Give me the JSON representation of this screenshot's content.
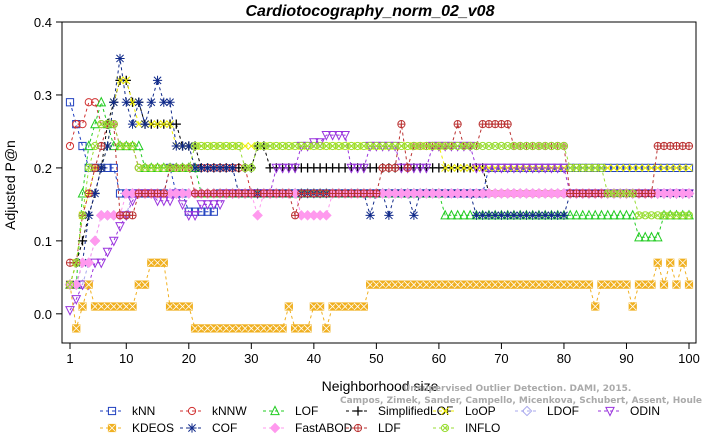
{
  "chart_data": {
    "type": "line",
    "title": "Cardiotocography_norm_02_v08",
    "xlabel": "Neighborhood size",
    "ylabel": "Adjusted P@n",
    "xlim": [
      1,
      100
    ],
    "ylim": [
      -0.04,
      0.4
    ],
    "xticks": [
      "1",
      "10",
      "20",
      "30",
      "40",
      "50",
      "60",
      "70",
      "80",
      "90",
      "100"
    ],
    "yticks": [
      "0.0",
      "0.1",
      "0.2",
      "0.3",
      "0.4"
    ],
    "grid": false,
    "legend_position": "bottom",
    "watermark": [
      "Unsupervised Outlier Detection. DAMI, 2015.",
      "Campos, Zimek, Sander, Campello, Micenkova, Schubert, Assent, Houle"
    ],
    "series": [
      {
        "name": "kNN",
        "color": "#1f3fbf",
        "marker": "square",
        "segments": [
          [
            1,
            0.29
          ],
          [
            2,
            0.26
          ],
          [
            3,
            0.23
          ],
          [
            4,
            0.2
          ],
          [
            6,
            0.2
          ],
          [
            8,
            0.2
          ],
          [
            9,
            0.165
          ],
          [
            16,
            0.165
          ],
          [
            17,
            0.2
          ],
          [
            18,
            0.165
          ],
          [
            19,
            0.165
          ],
          [
            20,
            0.14
          ],
          [
            24,
            0.14
          ],
          [
            25,
            0.165
          ],
          [
            67,
            0.165
          ],
          [
            68,
            0.2
          ],
          [
            100,
            0.2
          ]
        ]
      },
      {
        "name": "kNNW",
        "color": "#d03030",
        "marker": "circle",
        "segments": [
          [
            1,
            0.23
          ],
          [
            2,
            0.26
          ],
          [
            4,
            0.29
          ],
          [
            6,
            0.26
          ],
          [
            9,
            0.23
          ],
          [
            11,
            0.23
          ],
          [
            12,
            0.2
          ],
          [
            29,
            0.2
          ],
          [
            30,
            0.165
          ],
          [
            100,
            0.165
          ]
        ]
      },
      {
        "name": "LOF",
        "color": "#22cc22",
        "marker": "triangle-up",
        "segments": [
          [
            1,
            0.04
          ],
          [
            2,
            0.04
          ],
          [
            3,
            0.165
          ],
          [
            4,
            0.23
          ],
          [
            5,
            0.26
          ],
          [
            6,
            0.29
          ],
          [
            7,
            0.26
          ],
          [
            8,
            0.23
          ],
          [
            12,
            0.23
          ],
          [
            13,
            0.2
          ],
          [
            21,
            0.2
          ],
          [
            22,
            0.165
          ],
          [
            60,
            0.165
          ],
          [
            61,
            0.135
          ],
          [
            91,
            0.135
          ],
          [
            92,
            0.105
          ],
          [
            95,
            0.105
          ],
          [
            96,
            0.135
          ],
          [
            100,
            0.135
          ]
        ]
      },
      {
        "name": "SimplifiedLOF",
        "color": "#000000",
        "marker": "plus",
        "segments": [
          [
            1,
            0.04
          ],
          [
            2,
            0.07
          ],
          [
            3,
            0.1
          ],
          [
            4,
            0.135
          ],
          [
            5,
            0.165
          ],
          [
            6,
            0.2
          ],
          [
            7,
            0.26
          ],
          [
            8,
            0.29
          ],
          [
            9,
            0.32
          ],
          [
            10,
            0.32
          ],
          [
            11,
            0.29
          ],
          [
            12,
            0.29
          ],
          [
            13,
            0.26
          ],
          [
            18,
            0.26
          ],
          [
            19,
            0.23
          ],
          [
            21,
            0.23
          ],
          [
            22,
            0.2
          ],
          [
            30,
            0.2
          ],
          [
            31,
            0.23
          ],
          [
            32,
            0.23
          ],
          [
            33,
            0.2
          ],
          [
            67,
            0.2
          ],
          [
            68,
            0.165
          ],
          [
            100,
            0.165
          ]
        ]
      },
      {
        "name": "LoOP",
        "color": "#eeee00",
        "marker": "x",
        "segments": [
          [
            1,
            0.04
          ],
          [
            2,
            0.07
          ],
          [
            3,
            0.135
          ],
          [
            4,
            0.165
          ],
          [
            5,
            0.2
          ],
          [
            7,
            0.23
          ],
          [
            8,
            0.29
          ],
          [
            9,
            0.32
          ],
          [
            10,
            0.32
          ],
          [
            11,
            0.29
          ],
          [
            12,
            0.26
          ],
          [
            17,
            0.26
          ],
          [
            18,
            0.23
          ],
          [
            60,
            0.23
          ],
          [
            61,
            0.2
          ],
          [
            100,
            0.2
          ]
        ]
      },
      {
        "name": "LDOF",
        "color": "#aaaaee",
        "marker": "diamond",
        "segments": [
          [
            1,
            0.04
          ],
          [
            4,
            0.07
          ],
          [
            5,
            0.1
          ],
          [
            6,
            0.135
          ],
          [
            10,
            0.135
          ],
          [
            11,
            0.165
          ],
          [
            100,
            0.165
          ]
        ]
      },
      {
        "name": "ODIN",
        "color": "#9933dd",
        "marker": "triangle-down",
        "segments": [
          [
            1,
            0.005
          ],
          [
            2,
            0.02
          ],
          [
            3,
            0.04
          ],
          [
            5,
            0.07
          ],
          [
            7,
            0.085
          ],
          [
            8,
            0.1
          ],
          [
            9,
            0.12
          ],
          [
            10,
            0.135
          ],
          [
            11,
            0.155
          ],
          [
            12,
            0.165
          ],
          [
            14,
            0.165
          ],
          [
            15,
            0.155
          ],
          [
            17,
            0.155
          ],
          [
            18,
            0.165
          ],
          [
            19,
            0.15
          ],
          [
            20,
            0.135
          ],
          [
            22,
            0.15
          ],
          [
            25,
            0.15
          ],
          [
            26,
            0.165
          ],
          [
            30,
            0.165
          ],
          [
            34,
            0.2
          ],
          [
            36,
            0.2
          ],
          [
            38,
            0.23
          ],
          [
            40,
            0.235
          ],
          [
            42,
            0.245
          ],
          [
            44,
            0.245
          ],
          [
            46,
            0.2
          ],
          [
            48,
            0.2
          ],
          [
            49,
            0.23
          ],
          [
            52,
            0.23
          ],
          [
            54,
            0.2
          ],
          [
            58,
            0.2
          ],
          [
            59,
            0.23
          ],
          [
            65,
            0.23
          ],
          [
            66,
            0.2
          ],
          [
            80,
            0.2
          ],
          [
            81,
            0.165
          ],
          [
            100,
            0.165
          ]
        ]
      },
      {
        "name": "KDEOS",
        "color": "#f0b020",
        "marker": "square-x",
        "segments": [
          [
            1,
            0.04
          ],
          [
            2,
            -0.02
          ],
          [
            3,
            0.01
          ],
          [
            4,
            0.04
          ],
          [
            5,
            0.01
          ],
          [
            11,
            0.01
          ],
          [
            12,
            0.04
          ],
          [
            13,
            0.04
          ],
          [
            14,
            0.07
          ],
          [
            16,
            0.07
          ],
          [
            17,
            0.01
          ],
          [
            20,
            0.01
          ],
          [
            21,
            -0.02
          ],
          [
            35,
            -0.02
          ],
          [
            36,
            0.01
          ],
          [
            37,
            -0.02
          ],
          [
            39,
            -0.02
          ],
          [
            40,
            0.01
          ],
          [
            41,
            0.01
          ],
          [
            42,
            -0.02
          ],
          [
            43,
            0.01
          ],
          [
            48,
            0.01
          ],
          [
            49,
            0.04
          ],
          [
            84,
            0.04
          ],
          [
            85,
            0.01
          ],
          [
            86,
            0.04
          ],
          [
            90,
            0.04
          ],
          [
            91,
            0.01
          ],
          [
            92,
            0.04
          ],
          [
            94,
            0.04
          ],
          [
            95,
            0.07
          ],
          [
            96,
            0.04
          ],
          [
            97,
            0.07
          ],
          [
            98,
            0.04
          ],
          [
            99,
            0.07
          ],
          [
            100,
            0.04
          ]
        ]
      },
      {
        "name": "COF",
        "color": "#102a8a",
        "marker": "asterisk",
        "segments": [
          [
            1,
            0.04
          ],
          [
            2,
            0.04
          ],
          [
            3,
            0.07
          ],
          [
            4,
            0.135
          ],
          [
            5,
            0.165
          ],
          [
            6,
            0.2
          ],
          [
            7,
            0.23
          ],
          [
            8,
            0.29
          ],
          [
            9,
            0.35
          ],
          [
            10,
            0.29
          ],
          [
            11,
            0.26
          ],
          [
            12,
            0.29
          ],
          [
            13,
            0.26
          ],
          [
            14,
            0.29
          ],
          [
            15,
            0.32
          ],
          [
            16,
            0.29
          ],
          [
            17,
            0.29
          ],
          [
            18,
            0.23
          ],
          [
            20,
            0.23
          ],
          [
            21,
            0.2
          ],
          [
            27,
            0.2
          ],
          [
            28,
            0.165
          ],
          [
            48,
            0.165
          ],
          [
            49,
            0.135
          ],
          [
            50,
            0.165
          ],
          [
            52,
            0.135
          ],
          [
            53,
            0.165
          ],
          [
            56,
            0.135
          ],
          [
            57,
            0.165
          ],
          [
            65,
            0.165
          ],
          [
            66,
            0.135
          ],
          [
            80,
            0.135
          ],
          [
            81,
            0.165
          ],
          [
            100,
            0.165
          ]
        ]
      },
      {
        "name": "FastABOD",
        "color": "#ff99ee",
        "marker": "diamond-filled",
        "segments": [
          [
            1,
            0.04
          ],
          [
            3,
            0.07
          ],
          [
            5,
            0.1
          ],
          [
            6,
            0.135
          ],
          [
            9,
            0.135
          ],
          [
            10,
            0.165
          ],
          [
            30,
            0.165
          ],
          [
            31,
            0.135
          ],
          [
            32,
            0.165
          ],
          [
            37,
            0.165
          ],
          [
            38,
            0.135
          ],
          [
            42,
            0.135
          ],
          [
            43,
            0.165
          ],
          [
            100,
            0.165
          ]
        ]
      },
      {
        "name": "LDF",
        "color": "#bb3333",
        "marker": "circle-plus",
        "segments": [
          [
            1,
            0.07
          ],
          [
            2,
            0.07
          ],
          [
            3,
            0.135
          ],
          [
            4,
            0.165
          ],
          [
            5,
            0.2
          ],
          [
            6,
            0.23
          ],
          [
            7,
            0.26
          ],
          [
            8,
            0.26
          ],
          [
            9,
            0.135
          ],
          [
            10,
            0.135
          ],
          [
            11,
            0.135
          ],
          [
            12,
            0.165
          ],
          [
            16,
            0.165
          ],
          [
            17,
            0.2
          ],
          [
            20,
            0.2
          ],
          [
            21,
            0.165
          ],
          [
            36,
            0.165
          ],
          [
            37,
            0.135
          ],
          [
            38,
            0.165
          ],
          [
            50,
            0.165
          ],
          [
            51,
            0.2
          ],
          [
            53,
            0.2
          ],
          [
            54,
            0.26
          ],
          [
            55,
            0.2
          ],
          [
            56,
            0.23
          ],
          [
            62,
            0.23
          ],
          [
            63,
            0.26
          ],
          [
            64,
            0.23
          ],
          [
            66,
            0.23
          ],
          [
            67,
            0.26
          ],
          [
            71,
            0.26
          ],
          [
            72,
            0.23
          ],
          [
            80,
            0.23
          ],
          [
            81,
            0.165
          ],
          [
            94,
            0.165
          ],
          [
            95,
            0.23
          ],
          [
            100,
            0.23
          ]
        ]
      },
      {
        "name": "INFLO",
        "color": "#99dd33",
        "marker": "circle-x",
        "segments": [
          [
            1,
            0.04
          ],
          [
            2,
            0.07
          ],
          [
            3,
            0.135
          ],
          [
            4,
            0.2
          ],
          [
            5,
            0.23
          ],
          [
            6,
            0.26
          ],
          [
            8,
            0.26
          ],
          [
            9,
            0.23
          ],
          [
            11,
            0.23
          ],
          [
            12,
            0.2
          ],
          [
            20,
            0.2
          ],
          [
            21,
            0.23
          ],
          [
            28,
            0.23
          ],
          [
            29,
            0.2
          ],
          [
            30,
            0.2
          ],
          [
            31,
            0.23
          ],
          [
            80,
            0.23
          ],
          [
            81,
            0.2
          ],
          [
            86,
            0.2
          ],
          [
            87,
            0.165
          ],
          [
            91,
            0.165
          ],
          [
            92,
            0.135
          ],
          [
            100,
            0.135
          ]
        ]
      }
    ]
  }
}
